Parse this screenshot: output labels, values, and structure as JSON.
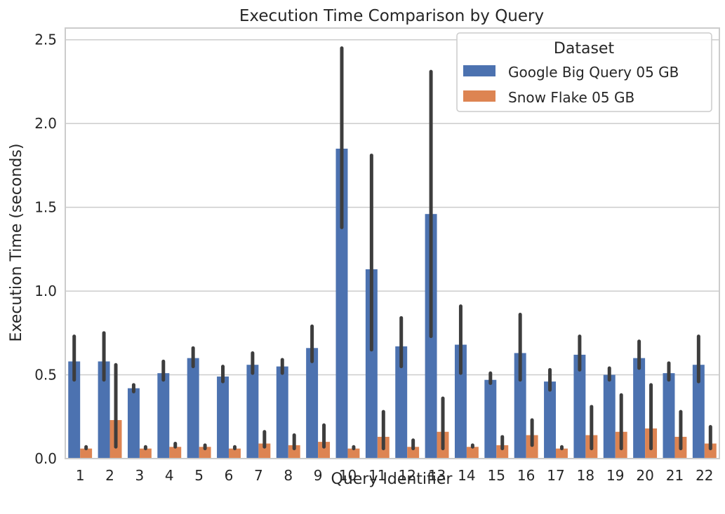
{
  "chart_data": {
    "type": "bar",
    "title": "Execution Time Comparison by Query",
    "xlabel": "Query Identifier",
    "ylabel": "Execution Time (seconds)",
    "ylim": [
      0,
      2.57
    ],
    "yticks": [
      "0.0",
      "0.5",
      "1.0",
      "1.5",
      "2.0",
      "2.5"
    ],
    "grid": "horizontal",
    "legend": {
      "title": "Dataset",
      "placement": "top-right"
    },
    "categories": [
      "1",
      "2",
      "3",
      "4",
      "5",
      "6",
      "7",
      "8",
      "9",
      "10",
      "11",
      "12",
      "13",
      "14",
      "15",
      "16",
      "17",
      "18",
      "19",
      "20",
      "21",
      "22"
    ],
    "series": [
      {
        "name": "Google Big Query 05 GB",
        "color": "#4c72b0",
        "values": [
          0.58,
          0.58,
          0.42,
          0.51,
          0.6,
          0.49,
          0.56,
          0.55,
          0.66,
          1.85,
          1.13,
          0.67,
          1.46,
          0.68,
          0.47,
          0.63,
          0.46,
          0.62,
          0.5,
          0.6,
          0.51,
          0.56
        ],
        "error_low": [
          0.47,
          0.47,
          0.4,
          0.47,
          0.55,
          0.46,
          0.51,
          0.51,
          0.58,
          1.38,
          0.65,
          0.55,
          0.73,
          0.51,
          0.45,
          0.47,
          0.41,
          0.53,
          0.47,
          0.54,
          0.47,
          0.46
        ],
        "error_high": [
          0.73,
          0.75,
          0.44,
          0.58,
          0.66,
          0.55,
          0.63,
          0.59,
          0.79,
          2.45,
          1.81,
          0.84,
          2.31,
          0.91,
          0.51,
          0.86,
          0.53,
          0.73,
          0.54,
          0.7,
          0.57,
          0.73
        ]
      },
      {
        "name": "Snow Flake 05 GB",
        "color": "#dd8452",
        "values": [
          0.06,
          0.23,
          0.06,
          0.07,
          0.07,
          0.06,
          0.09,
          0.08,
          0.1,
          0.06,
          0.13,
          0.07,
          0.16,
          0.07,
          0.08,
          0.14,
          0.06,
          0.14,
          0.16,
          0.18,
          0.13,
          0.09
        ],
        "error_low": [
          0.06,
          0.07,
          0.06,
          0.07,
          0.06,
          0.06,
          0.07,
          0.06,
          0.07,
          0.06,
          0.06,
          0.06,
          0.06,
          0.07,
          0.06,
          0.08,
          0.06,
          0.06,
          0.06,
          0.06,
          0.06,
          0.06
        ],
        "error_high": [
          0.07,
          0.56,
          0.07,
          0.09,
          0.08,
          0.07,
          0.16,
          0.14,
          0.2,
          0.07,
          0.28,
          0.11,
          0.36,
          0.08,
          0.13,
          0.23,
          0.07,
          0.31,
          0.38,
          0.44,
          0.28,
          0.19
        ]
      }
    ]
  }
}
